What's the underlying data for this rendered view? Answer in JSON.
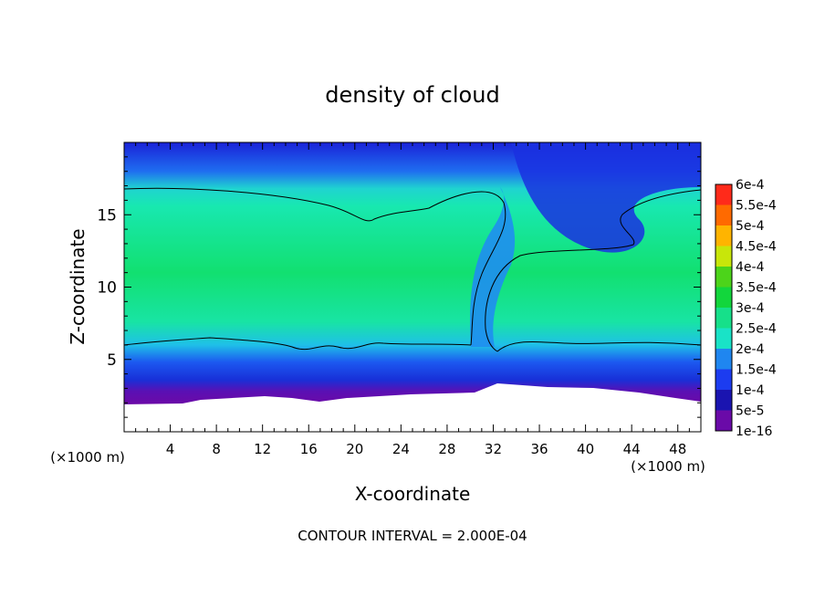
{
  "chart_data": {
    "type": "heatmap",
    "title": "density of cloud",
    "xlabel": "X-coordinate",
    "ylabel": "Z-coordinate",
    "x_unit_left": "(×1000 m)",
    "x_unit_right": "(×1000 m)",
    "footer": "CONTOUR INTERVAL = 2.000E-04",
    "xlim": [
      0,
      50
    ],
    "ylim": [
      0,
      20
    ],
    "x_ticks": [
      4,
      8,
      12,
      16,
      20,
      24,
      28,
      32,
      36,
      40,
      44,
      48
    ],
    "y_ticks": [
      5,
      10,
      15
    ],
    "legend_labels": [
      "1e-16",
      "5e-5",
      "1e-4",
      "1.5e-4",
      "2e-4",
      "2.5e-4",
      "3e-4",
      "3.5e-4",
      "4e-4",
      "4.5e-4",
      "5e-4",
      "5.5e-4",
      "6e-4"
    ],
    "legend_colors": [
      "#6a0aa8",
      "#1a14b0",
      "#1c3cf0",
      "#1f86f0",
      "#19e3c7",
      "#16e08a",
      "#12d63c",
      "#4cd41a",
      "#c8e60a",
      "#ffb400",
      "#ff6a00",
      "#ff2a1a",
      "#ff9090"
    ],
    "legend_placement": "right",
    "contour_interval": 0.0002,
    "contour_line_color": "#000000"
  }
}
